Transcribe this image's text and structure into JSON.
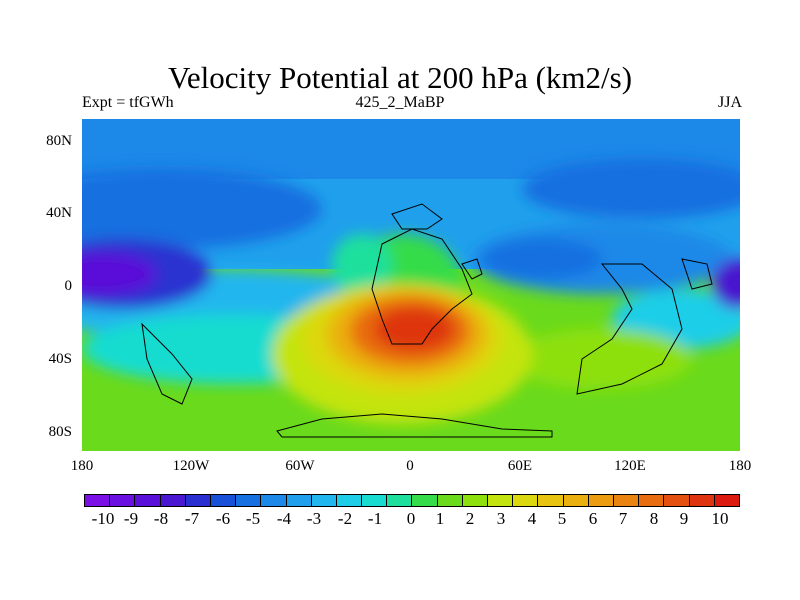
{
  "title": "Velocity Potential at 200 hPa (km2/s)",
  "left_subtitle": "Expt = tfGWh",
  "center_subtitle": "425_2_MaBP",
  "right_subtitle": "JJA",
  "y_ticks": [
    "80N",
    "40N",
    "0",
    "40S",
    "80S"
  ],
  "x_ticks": [
    "180",
    "120W",
    "60W",
    "0",
    "60E",
    "120E",
    "180"
  ],
  "colorbar_labels": [
    "-10",
    "-9",
    "-8",
    "-7",
    "-6",
    "-5",
    "-4",
    "-3",
    "-2",
    "-1",
    "0",
    "1",
    "2",
    "3",
    "4",
    "5",
    "6",
    "7",
    "8",
    "9",
    "10"
  ],
  "colorbar_colors": [
    "#7a10e6",
    "#6a10e0",
    "#5a10d8",
    "#4a18d0",
    "#2a30d0",
    "#1850d8",
    "#1670e0",
    "#1c88e8",
    "#20a0ec",
    "#22b6ee",
    "#1ecee8",
    "#18dcd0",
    "#1ee09c",
    "#36dc4a",
    "#6ada1c",
    "#8ee00c",
    "#c4e410",
    "#dcd810",
    "#e6c410",
    "#eab010",
    "#ec9c10",
    "#ea8410",
    "#e86c10",
    "#e45010",
    "#de3410",
    "#dc1a10"
  ],
  "chart_data": {
    "type": "heatmap",
    "title": "Velocity Potential at 200 hPa (km2/s)",
    "variable": "velocity potential",
    "level": "200 hPa",
    "units": "km2/s",
    "experiment": "tfGWh",
    "case": "425_2_MaBP",
    "season": "JJA",
    "x_range": [
      -180,
      180
    ],
    "y_range": [
      -90,
      90
    ],
    "colorbar_levels": [
      -10,
      -9,
      -8,
      -7,
      -6,
      -5,
      -4,
      -3,
      -2,
      -1,
      0,
      1,
      2,
      3,
      4,
      5,
      6,
      7,
      8,
      9,
      10
    ],
    "features": [
      {
        "description": "maximum over tropical Africa / Atlantic",
        "lon": -5,
        "lat": -20,
        "value": 10
      },
      {
        "description": "minimum over tropical west Pacific (dateline)",
        "lon": -165,
        "lat": 10,
        "value": -9
      },
      {
        "description": "minimum over east Asia",
        "lon": 55,
        "lat": 15,
        "value": -5
      },
      {
        "description": "negative band over north Pacific",
        "lon": -140,
        "lat": 35,
        "value": -4
      }
    ]
  }
}
